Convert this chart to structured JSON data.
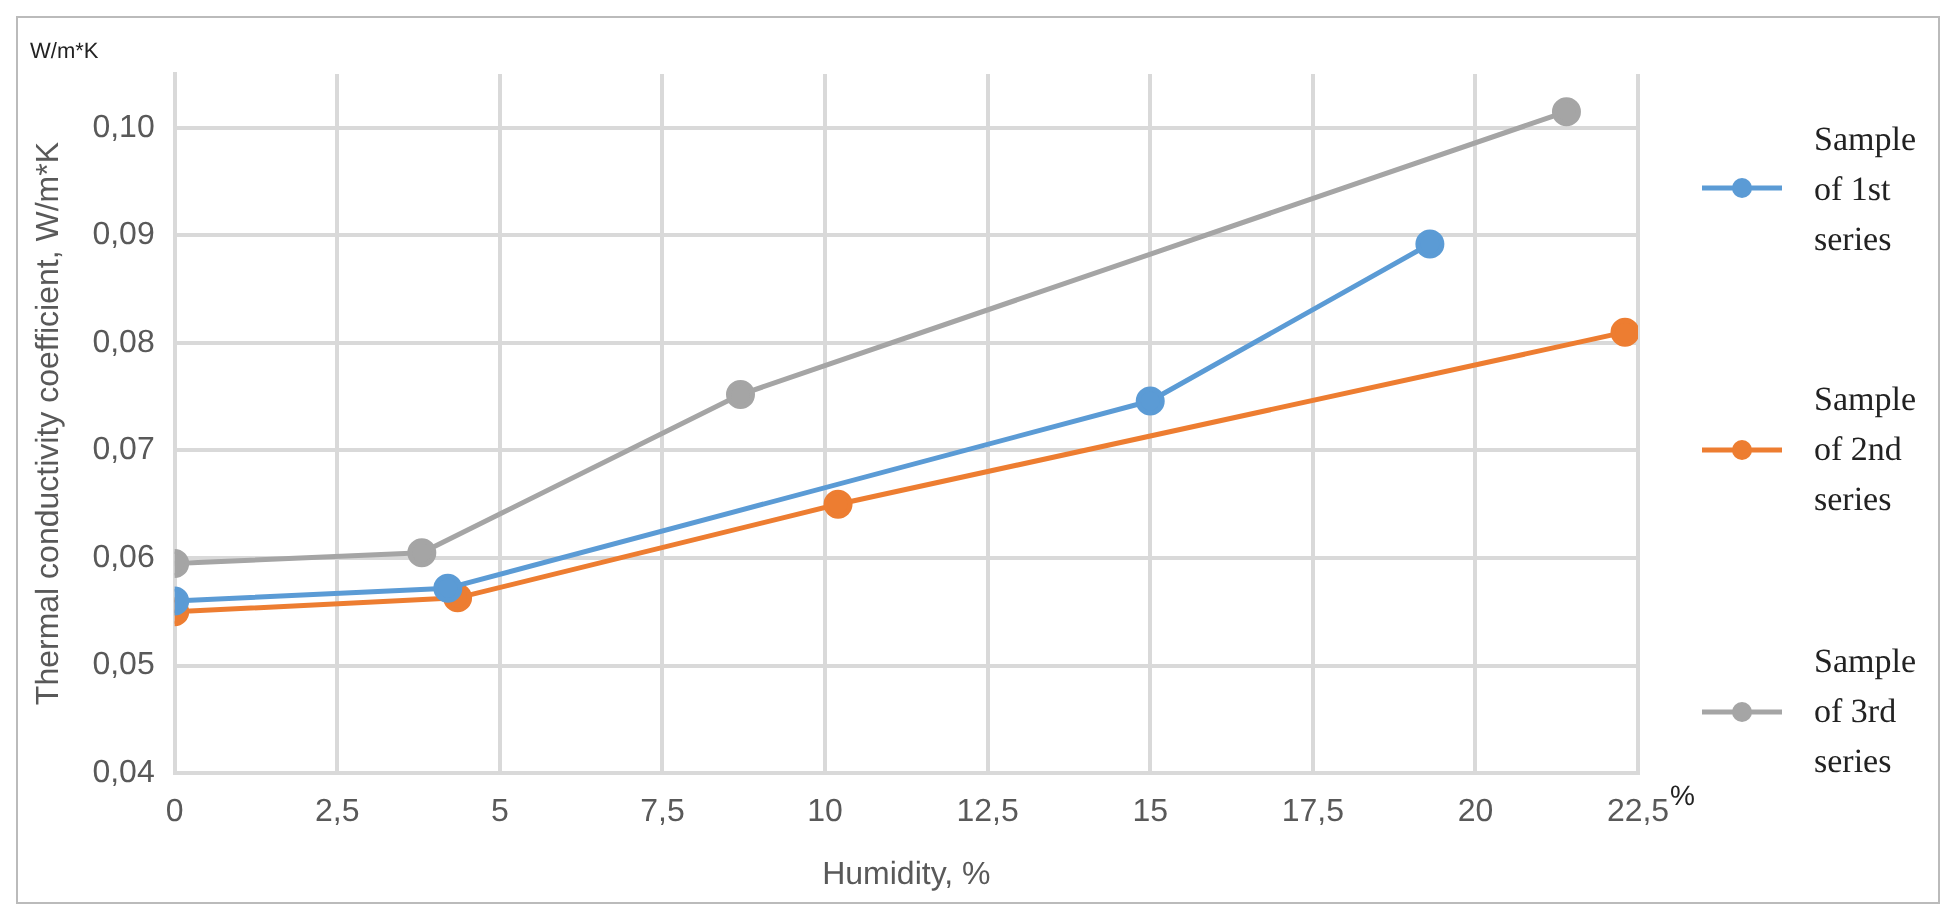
{
  "chart_data": {
    "type": "line",
    "xlabel": "Humidity, %",
    "ylabel": "Thermal conductivity coefficient, W/m*K",
    "annotations": [
      "W/m*K",
      "%"
    ],
    "xlim": [
      0,
      22.5
    ],
    "xticks": [
      0,
      {
        "value": 2.5,
        "label": "2,5"
      },
      5,
      {
        "value": 7.5,
        "label": "7,5"
      },
      10,
      {
        "value": 12.5,
        "label": "12,5"
      },
      15,
      {
        "value": 17.5,
        "label": "17,5"
      },
      20,
      {
        "value": 22.5,
        "label": "22,5"
      }
    ],
    "ylim": [
      0.04,
      0.105
    ],
    "yticks": [
      {
        "value": 0.04,
        "label": "0,04"
      },
      {
        "value": 0.05,
        "label": "0,05"
      },
      {
        "value": 0.06,
        "label": "0,06"
      },
      {
        "value": 0.07,
        "label": "0,07"
      },
      {
        "value": 0.08,
        "label": "0,08"
      },
      {
        "value": 0.09,
        "label": "0,09"
      },
      {
        "value": 0.1,
        "label": "0,10"
      }
    ],
    "grid": true,
    "legend": "right",
    "marker": "circle",
    "line_style": "solid",
    "series": [
      {
        "name": "Sample of 1st series",
        "color": "#5b9bd5",
        "x": [
          0,
          4.2,
          15,
          19.3
        ],
        "values": [
          0.056,
          0.0572,
          0.0746,
          0.0892
        ]
      },
      {
        "name": "Sample of 2nd series",
        "color": "#ed7d31",
        "x": [
          0,
          4.35,
          10.2,
          22.3
        ],
        "values": [
          0.055,
          0.0563,
          0.065,
          0.081
        ]
      },
      {
        "name": "Sample of 3rd series",
        "color": "#a5a5a5",
        "x": [
          0,
          3.8,
          8.7,
          21.4
        ],
        "values": [
          0.0595,
          0.0605,
          0.0752,
          0.1015
        ]
      }
    ]
  }
}
